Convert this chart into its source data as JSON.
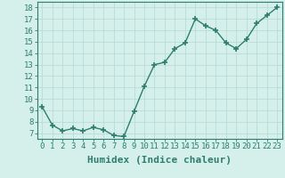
{
  "xlabel": "Humidex (Indice chaleur)",
  "ylabel": "",
  "x": [
    0,
    1,
    2,
    3,
    4,
    5,
    6,
    7,
    8,
    9,
    10,
    11,
    12,
    13,
    14,
    15,
    16,
    17,
    18,
    19,
    20,
    21,
    22,
    23
  ],
  "y": [
    9.3,
    7.7,
    7.2,
    7.4,
    7.2,
    7.5,
    7.3,
    6.8,
    6.7,
    8.9,
    11.1,
    13.0,
    13.2,
    14.4,
    14.9,
    17.0,
    16.4,
    16.0,
    14.9,
    14.4,
    15.2,
    16.6,
    17.3,
    18.0
  ],
  "line_color": "#2e7d6e",
  "marker": "+",
  "marker_size": 4,
  "line_width": 1.0,
  "bg_color": "#d5f0eb",
  "grid_color": "#b8ddd6",
  "tick_color": "#2e7d6e",
  "label_color": "#2e7d6e",
  "ylim": [
    6.5,
    18.5
  ],
  "yticks": [
    7,
    8,
    9,
    10,
    11,
    12,
    13,
    14,
    15,
    16,
    17,
    18
  ],
  "xlim": [
    -0.5,
    23.5
  ],
  "font_family": "monospace",
  "xlabel_fontsize": 8,
  "tick_fontsize": 6.5
}
